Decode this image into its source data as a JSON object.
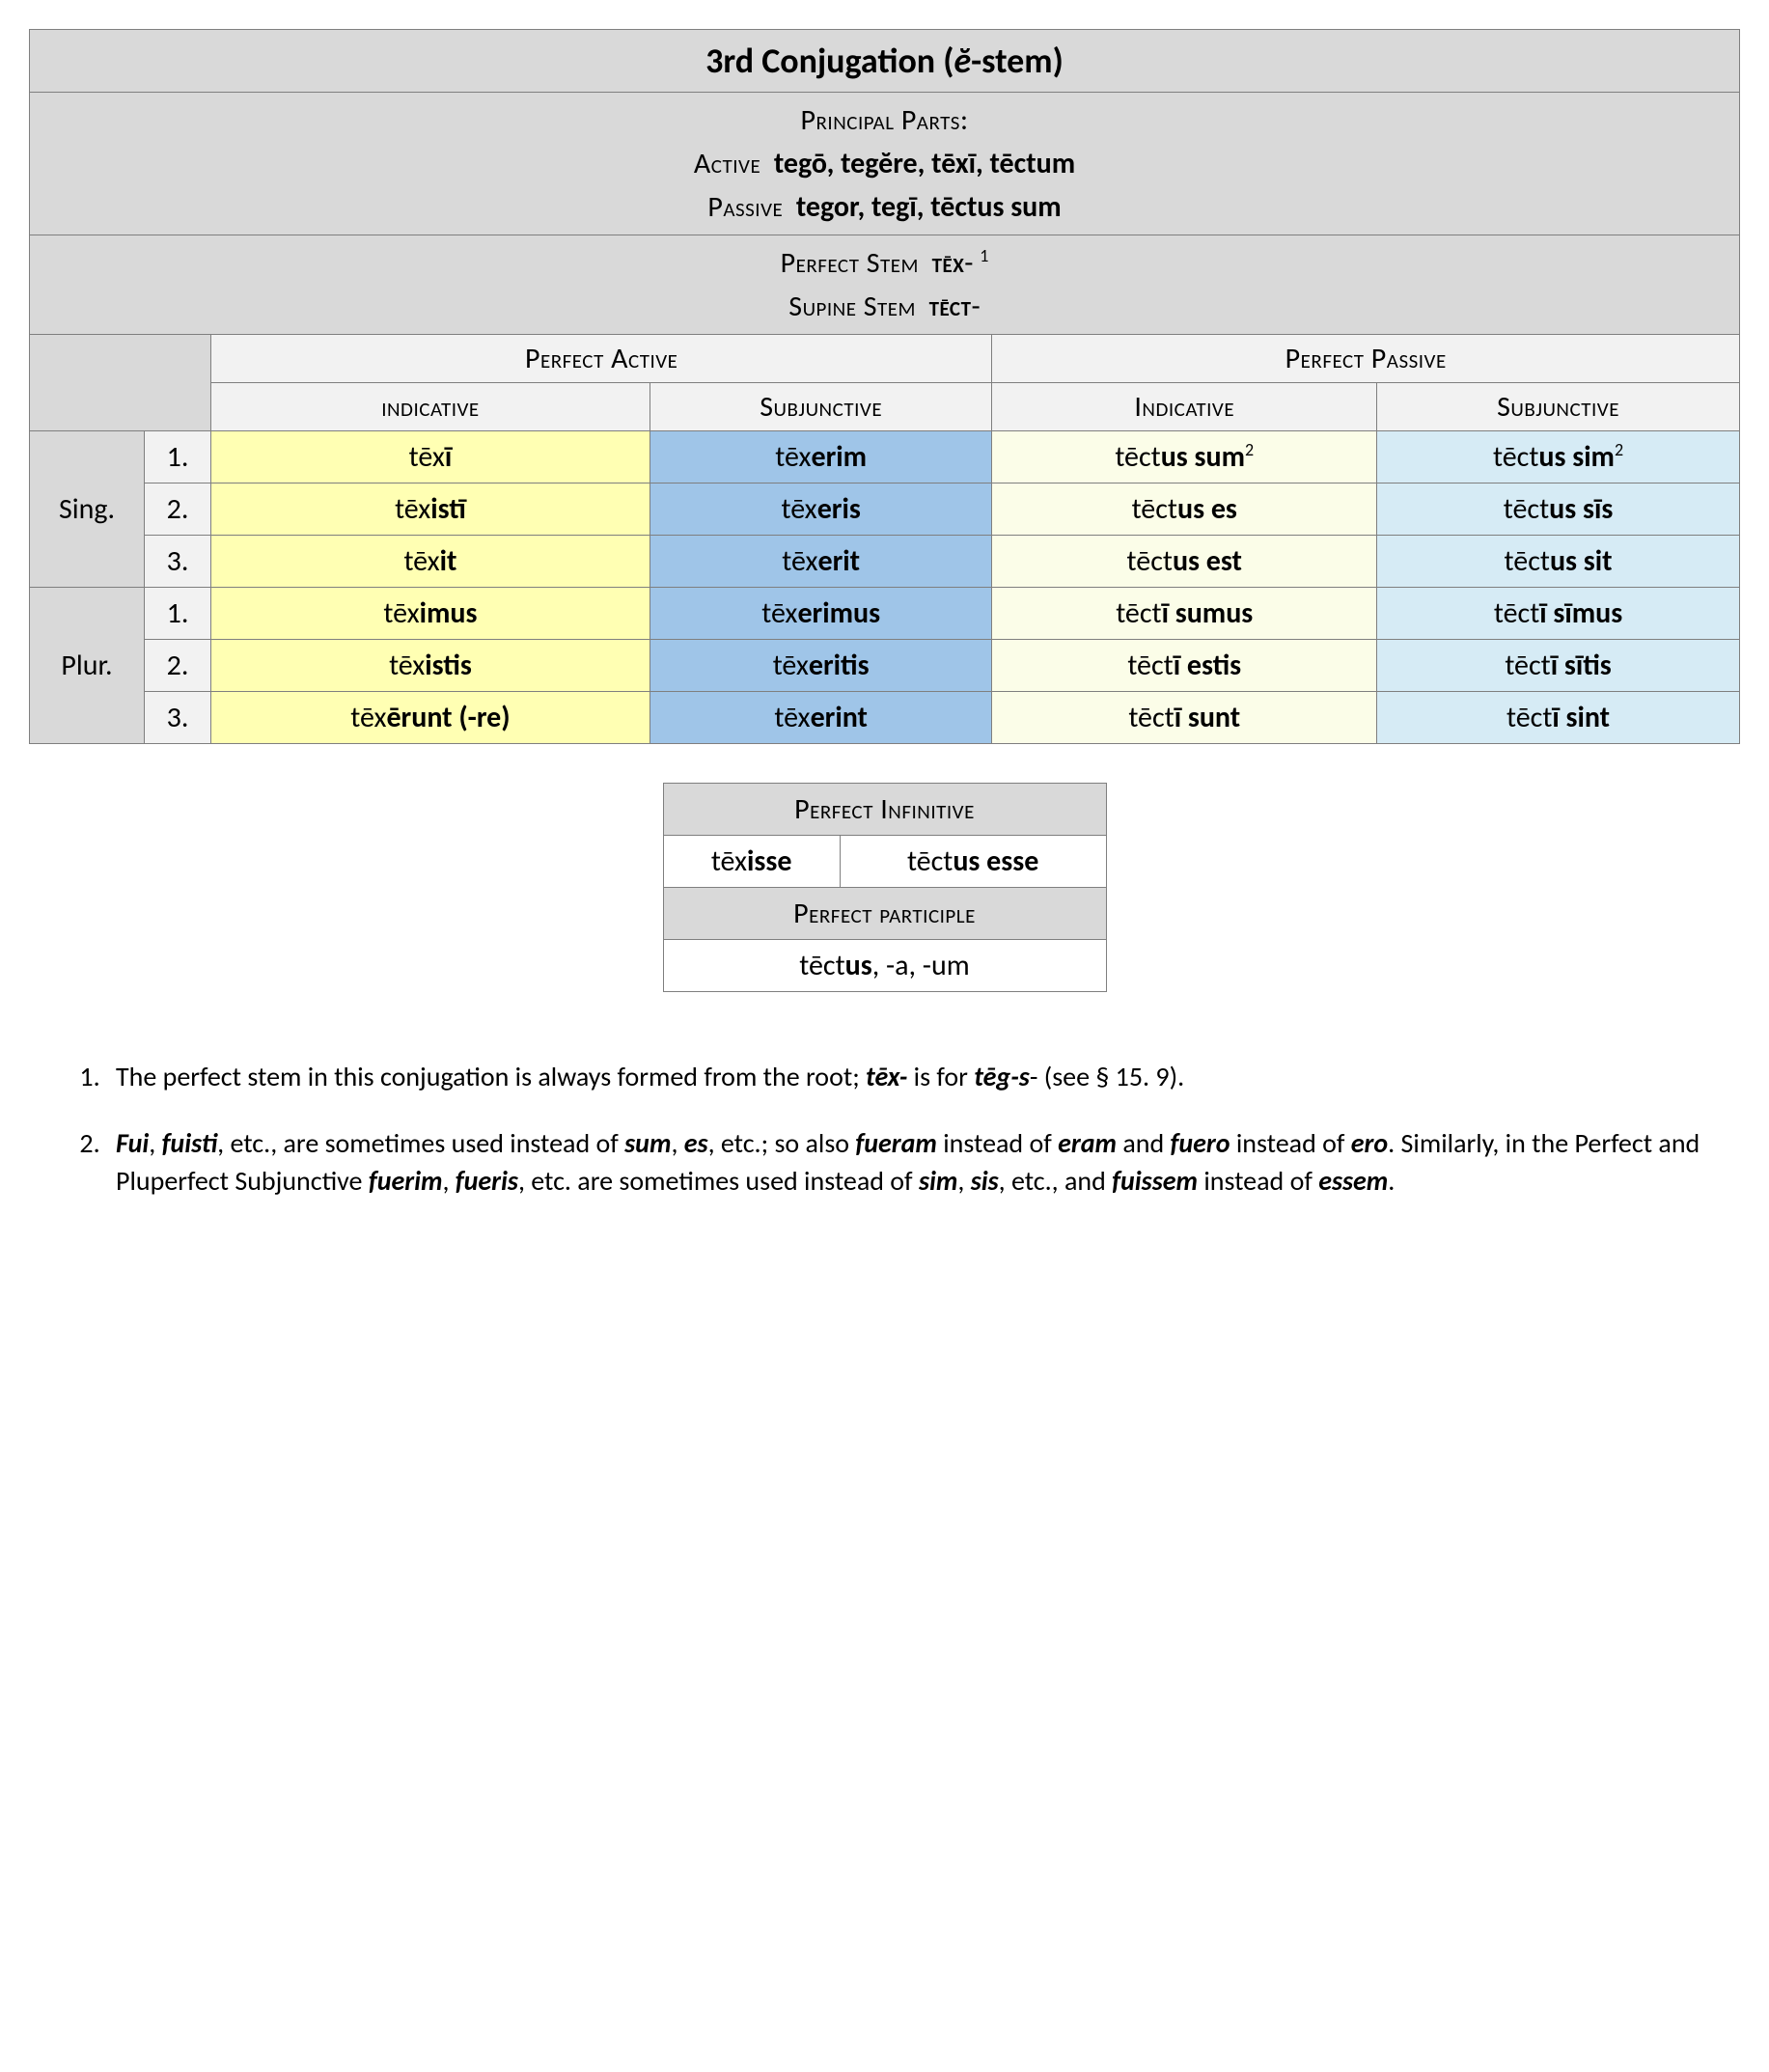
{
  "title_pre": "3rd Conjugation (",
  "title_stem": "ĕ",
  "title_post": "-stem)",
  "principal_parts_label": "Principal Parts:",
  "active_label": "Active",
  "active_parts": "tegō, tegĕre, tēxī, tēctum",
  "passive_label": "Passive",
  "passive_parts": "tegor, tegī, tēctus sum",
  "perfect_stem_label": "Perfect Stem",
  "perfect_stem_val": "tēx",
  "perfect_stem_note": "1",
  "supine_stem_label": "Supine Stem",
  "supine_stem_val": "tēct",
  "col_active": "Perfect Active",
  "col_passive": "Perfect Passive",
  "sub_indicative": "indicative",
  "sub_subjunctive": "Subjunctive",
  "sub_indicative2": "Indicative",
  "sub_subjunctive2": "Subjunctive",
  "sing": "Sing.",
  "plur": "Plur.",
  "n1": "1.",
  "n2": "2.",
  "n3": "3.",
  "rows": [
    {
      "ai": {
        "p": "tēx",
        "s": "ī"
      },
      "as": {
        "p": "tēx",
        "s": "erim"
      },
      "pi": {
        "p": "tēct",
        "s": "us sum",
        "sup": "2"
      },
      "ps": {
        "p": "tēct",
        "s": "us sim",
        "sup": "2"
      }
    },
    {
      "ai": {
        "p": "tēx",
        "s": "istī"
      },
      "as": {
        "p": "tēx",
        "s": "eris"
      },
      "pi": {
        "p": "tēct",
        "s": "us es"
      },
      "ps": {
        "p": "tēct",
        "s": "us sīs"
      }
    },
    {
      "ai": {
        "p": "tēx",
        "s": "it"
      },
      "as": {
        "p": "tēx",
        "s": "erit"
      },
      "pi": {
        "p": "tēct",
        "s": "us est"
      },
      "ps": {
        "p": "tēct",
        "s": "us sit"
      }
    },
    {
      "ai": {
        "p": "tēx",
        "s": "imus"
      },
      "as": {
        "p": "tēx",
        "s": "erimus"
      },
      "pi": {
        "p": "tēct",
        "s": "ī sumus"
      },
      "ps": {
        "p": "tēct",
        "s": "ī sīmus"
      }
    },
    {
      "ai": {
        "p": "tēx",
        "s": "istis"
      },
      "as": {
        "p": "tēx",
        "s": "eritis"
      },
      "pi": {
        "p": "tēct",
        "s": "ī estis"
      },
      "ps": {
        "p": "tēct",
        "s": "ī sītis"
      }
    },
    {
      "ai": {
        "p": "tēx",
        "s": "ērunt (-re)"
      },
      "as": {
        "p": "tēx",
        "s": "erint"
      },
      "pi": {
        "p": "tēct",
        "s": "ī sunt"
      },
      "ps": {
        "p": "tēct",
        "s": "ī sint"
      }
    }
  ],
  "inf_label": "Perfect Infinitive",
  "inf_act_p": "tēx",
  "inf_act_s": "isse",
  "inf_pas_p": "tēct",
  "inf_pas_s": "us esse",
  "part_label": "Perfect participle",
  "part_p": "tēct",
  "part_s": "us",
  "part_rest": ", -a, -um",
  "note1_a": "The perfect stem in this conjugation is always formed from the root; ",
  "note1_b": "tēx-",
  "note1_c": " is for ",
  "note1_d": "tēg-s",
  "note1_e": "- (see § 15. 9).",
  "note2_w1": "Fui",
  "note2_t1": ", ",
  "note2_w2": "fuisti",
  "note2_t2": ", etc., are sometimes used instead of ",
  "note2_w3": "sum",
  "note2_t3": ", ",
  "note2_w4": "es",
  "note2_t4": ", etc.; so also ",
  "note2_w5": "fueram",
  "note2_t5": " instead of ",
  "note2_w6": "eram",
  "note2_t6": " and ",
  "note2_w7": "fuero",
  "note2_t7": " instead of ",
  "note2_w8": "ero",
  "note2_t8": ". Similarly, in the Perfect and Pluperfect Subjunctive ",
  "note2_w9": "fuerim",
  "note2_t9": ", ",
  "note2_w10": "fueris",
  "note2_t10": ", etc. are sometimes used instead of ",
  "note2_w11": "sim",
  "note2_t11": ", ",
  "note2_w12": "sis",
  "note2_t12": ", etc., and ",
  "note2_w13": "fuissem",
  "note2_t13": " instead of ",
  "note2_w14": "essem",
  "note2_t14": "."
}
